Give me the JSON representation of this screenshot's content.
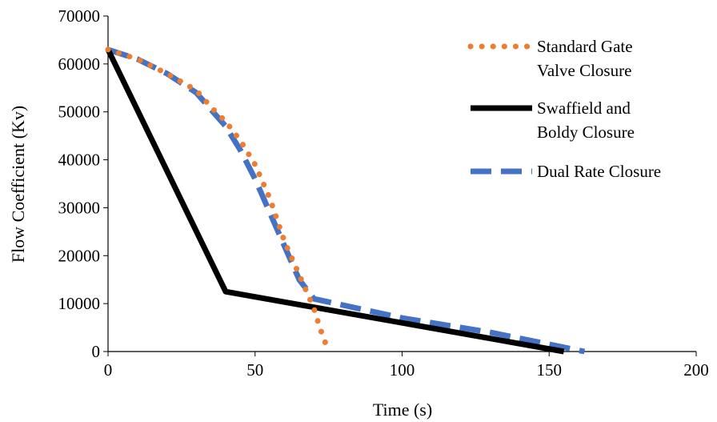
{
  "chart_data": {
    "type": "line",
    "title": "",
    "xlabel": "Time (s)",
    "ylabel": "Flow Coefficient (Kv)",
    "xlim": [
      0,
      200
    ],
    "ylim": [
      0,
      70000
    ],
    "xticks": [
      0,
      50,
      100,
      150,
      200
    ],
    "yticks": [
      0,
      10000,
      20000,
      30000,
      40000,
      50000,
      60000,
      70000
    ],
    "x_tick_labels": [
      "0",
      "50",
      "100",
      "150",
      "200"
    ],
    "y_tick_labels": [
      "0",
      "10000",
      "20000",
      "30000",
      "40000",
      "50000",
      "60000",
      "70000"
    ],
    "grid": false,
    "legend_position": "right",
    "series": [
      {
        "name": "Standard Gate Valve Closure",
        "style": "dotted",
        "color": "#ED7D31",
        "x": [
          0,
          10,
          20,
          30,
          35,
          40,
          45,
          50,
          55,
          60,
          65,
          70,
          72,
          75
        ],
        "y": [
          63000,
          61000,
          58000,
          54500,
          51000,
          48000,
          44000,
          39000,
          32000,
          23000,
          16000,
          9000,
          5000,
          0
        ]
      },
      {
        "name": "Swaffield and Boldy Closure",
        "style": "solid",
        "color": "#000000",
        "x": [
          0,
          40,
          155
        ],
        "y": [
          63000,
          12500,
          0
        ]
      },
      {
        "name": "Dual Rate Closure",
        "style": "dashed",
        "color": "#4472C4",
        "x": [
          0,
          10,
          20,
          30,
          35,
          40,
          45,
          50,
          55,
          60,
          65,
          70,
          100,
          130,
          150,
          162
        ],
        "y": [
          63000,
          61000,
          58000,
          54000,
          50500,
          47000,
          42000,
          36000,
          29000,
          22000,
          15000,
          11000,
          7000,
          4000,
          1500,
          0
        ]
      }
    ],
    "legend_labels": [
      [
        "Standard Gate",
        "Valve Closure"
      ],
      [
        "Swaffield and",
        "Boldy Closure"
      ],
      [
        "Dual Rate Closure"
      ]
    ]
  }
}
